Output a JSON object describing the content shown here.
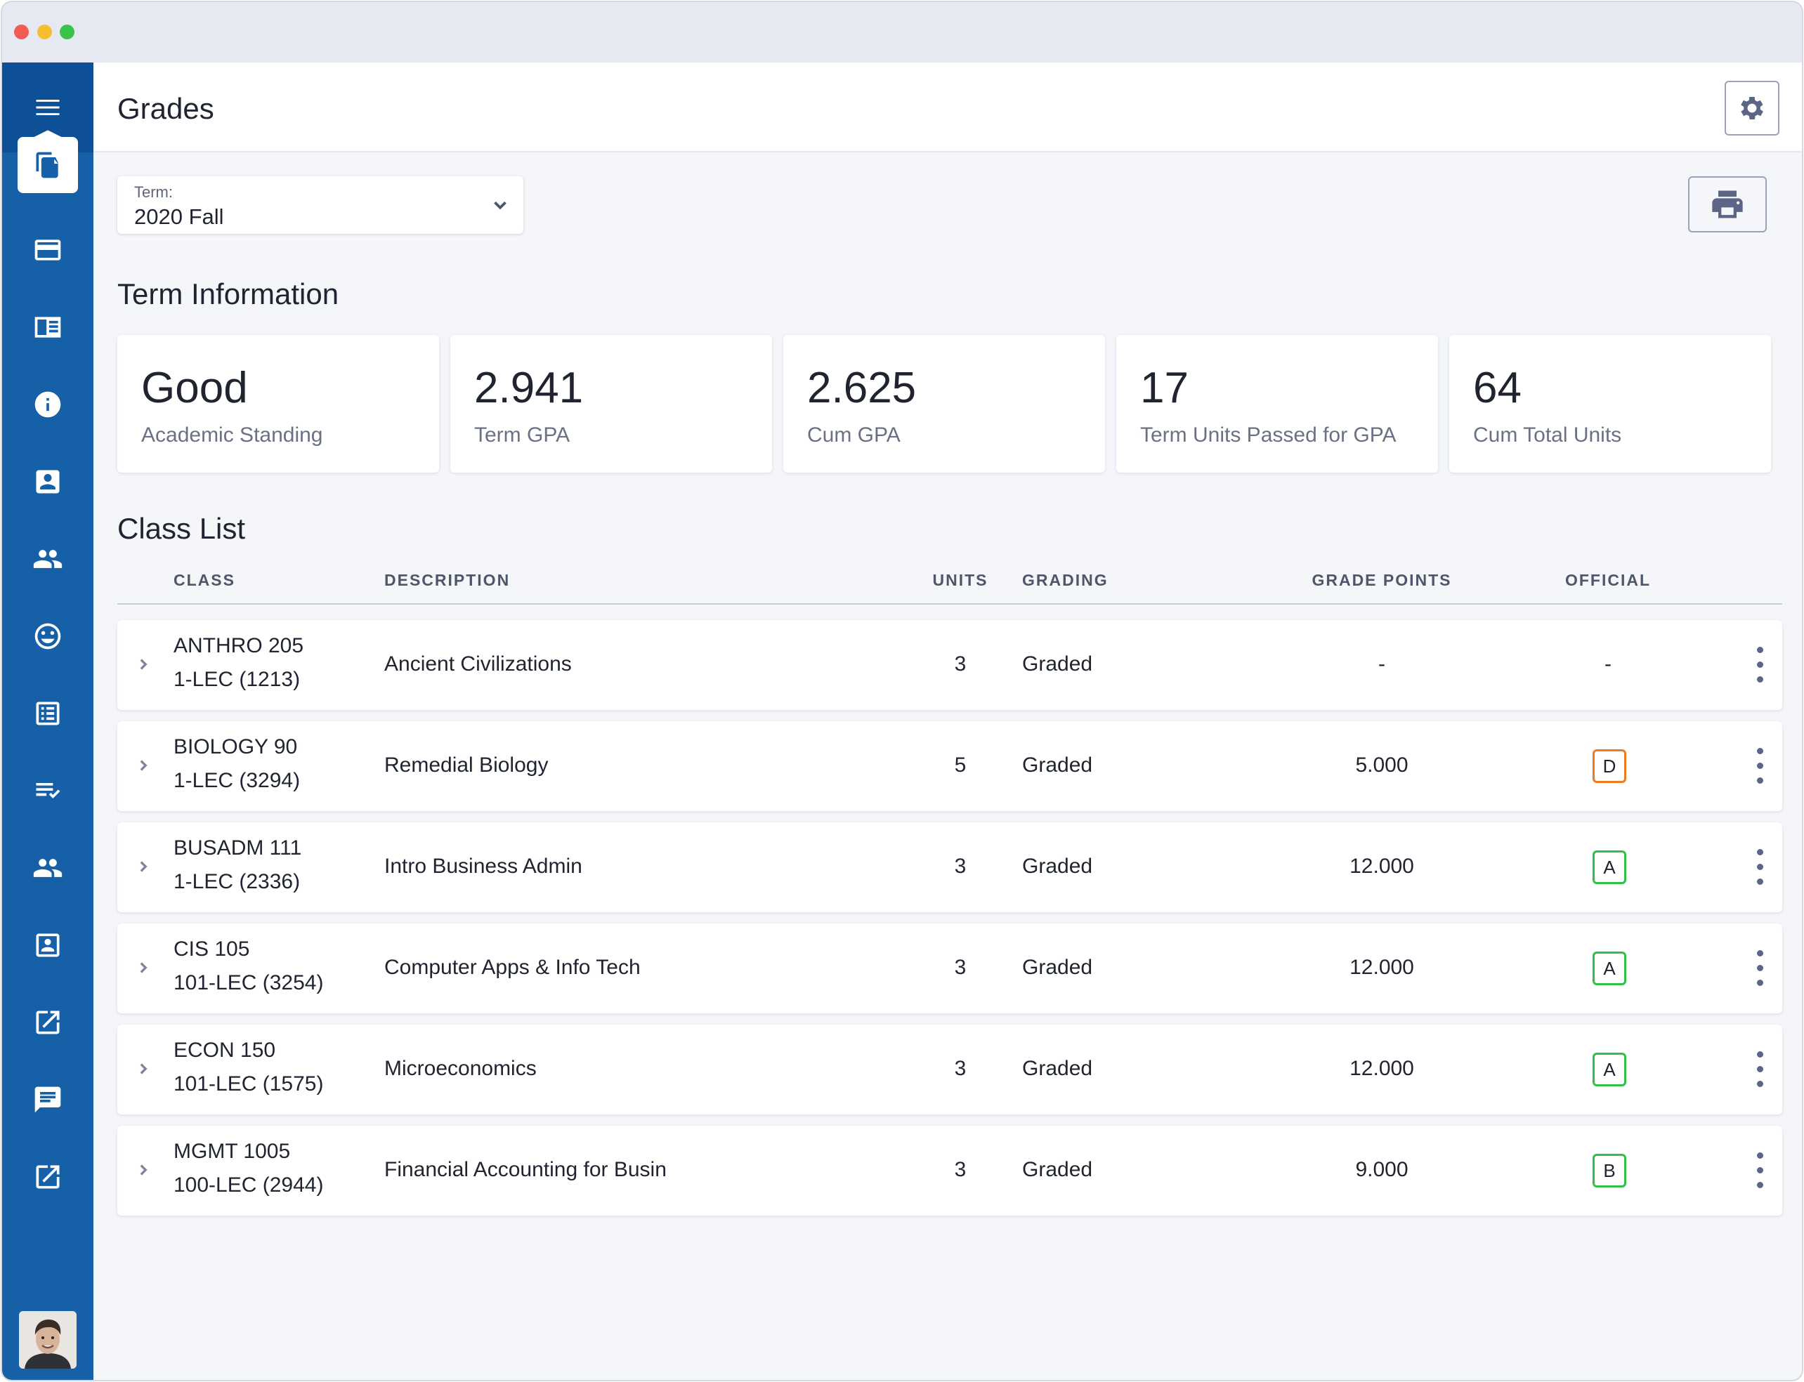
{
  "header": {
    "title": "Grades"
  },
  "sidebar": {
    "items": [
      {
        "icon": "graduation-cap-icon"
      },
      {
        "icon": "document-copy-icon",
        "active": true
      },
      {
        "icon": "credit-card-icon"
      },
      {
        "icon": "catalog-icon"
      },
      {
        "icon": "info-icon"
      },
      {
        "icon": "contact-card-icon"
      },
      {
        "icon": "people-icon"
      },
      {
        "icon": "smiley-icon"
      },
      {
        "icon": "list-icon"
      },
      {
        "icon": "checklist-icon"
      },
      {
        "icon": "group-icon"
      },
      {
        "icon": "portrait-icon"
      },
      {
        "icon": "external-link-icon"
      },
      {
        "icon": "chat-icon"
      },
      {
        "icon": "external-link-icon"
      }
    ]
  },
  "term": {
    "label": "Term:",
    "value": "2020 Fall"
  },
  "term_info": {
    "title": "Term Information",
    "stats": [
      {
        "value": "Good",
        "label": "Academic Standing"
      },
      {
        "value": "2.941",
        "label": "Term GPA"
      },
      {
        "value": "2.625",
        "label": "Cum GPA"
      },
      {
        "value": "17",
        "label": "Term Units Passed for GPA"
      },
      {
        "value": "64",
        "label": "Cum Total Units"
      }
    ]
  },
  "class_list": {
    "title": "Class List",
    "columns": {
      "class": "CLASS",
      "description": "DESCRIPTION",
      "units": "UNITS",
      "grading": "GRADING",
      "grade_points": "GRADE POINTS",
      "official": "OFFICIAL"
    },
    "rows": [
      {
        "class": "ANTHRO 205",
        "section": "1-LEC (1213)",
        "description": "Ancient Civilizations",
        "units": "3",
        "grading": "Graded",
        "grade_points": "-",
        "official": "-"
      },
      {
        "class": "BIOLOGY 90",
        "section": "1-LEC (3294)",
        "description": "Remedial Biology",
        "units": "5",
        "grading": "Graded",
        "grade_points": "5.000",
        "official": "D"
      },
      {
        "class": "BUSADM 111",
        "section": "1-LEC (2336)",
        "description": "Intro Business Admin",
        "units": "3",
        "grading": "Graded",
        "grade_points": "12.000",
        "official": "A"
      },
      {
        "class": "CIS 105",
        "section": "101-LEC (3254)",
        "description": "Computer Apps & Info Tech",
        "units": "3",
        "grading": "Graded",
        "grade_points": "12.000",
        "official": "A"
      },
      {
        "class": "ECON 150",
        "section": "101-LEC (1575)",
        "description": "Microeconomics",
        "units": "3",
        "grading": "Graded",
        "grade_points": "12.000",
        "official": "A"
      },
      {
        "class": "MGMT 1005",
        "section": "100-LEC (2944)",
        "description": "Financial Accounting for Busin",
        "units": "3",
        "grading": "Graded",
        "grade_points": "9.000",
        "official": "B"
      }
    ]
  },
  "colors": {
    "sidebar": "#1660a8",
    "grade_d": "#f07a1f",
    "grade_pass": "#2fbf4a"
  }
}
